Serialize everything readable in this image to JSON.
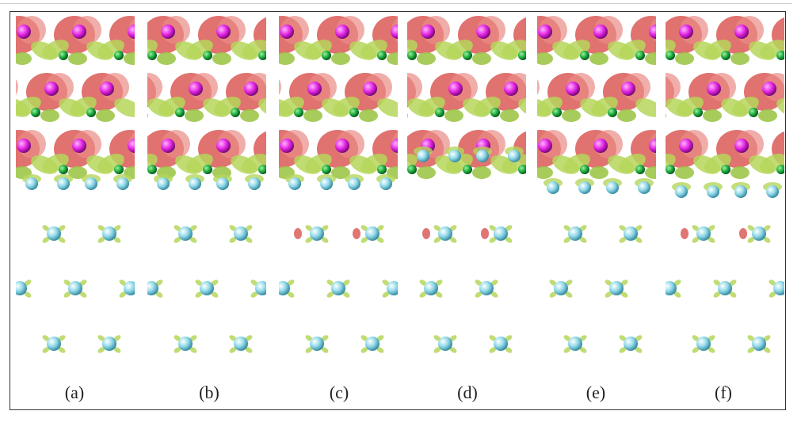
{
  "figure": {
    "panels": [
      {
        "id": "a",
        "label": "(a)"
      },
      {
        "id": "b",
        "label": "(b)"
      },
      {
        "id": "c",
        "label": "(c)"
      },
      {
        "id": "d",
        "label": "(d)"
      },
      {
        "id": "e",
        "label": "(e)"
      },
      {
        "id": "f",
        "label": "(f)"
      }
    ],
    "colors": {
      "red_isosurface": "#d9534f",
      "green_isosurface": "#b5d65a",
      "magenta_atom": "#e020e0",
      "green_atom": "#1aa83a",
      "cyan_atom": "#8fd8e8",
      "frame": "#333333"
    }
  }
}
